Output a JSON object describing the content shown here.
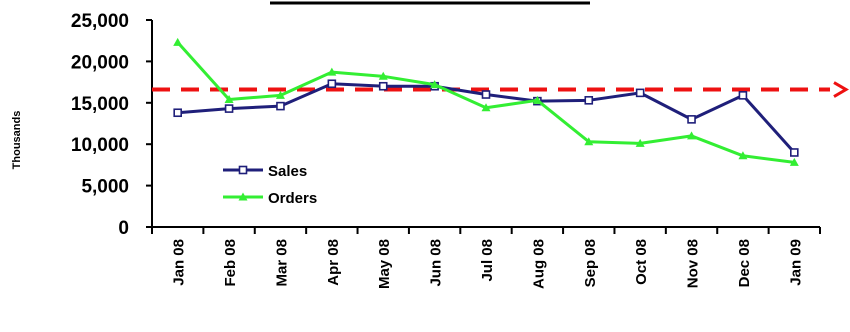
{
  "chart_data": {
    "type": "line",
    "title": "",
    "ylabel": "Thousands",
    "xlabel": "",
    "ylim": [
      0,
      25000
    ],
    "yticks": [
      0,
      5000,
      10000,
      15000,
      20000,
      25000
    ],
    "ytick_labels": [
      "0",
      "5,000",
      "10,000",
      "15,000",
      "20,000",
      "25,000"
    ],
    "categories": [
      "Jan 08",
      "Feb 08",
      "Mar 08",
      "Apr 08",
      "May 08",
      "Jun 08",
      "Jul 08",
      "Aug 08",
      "Sep 08",
      "Oct 08",
      "Nov 08",
      "Dec 08",
      "Jan 09"
    ],
    "series": [
      {
        "name": "Sales",
        "color": "#1f1f7a",
        "marker": "square",
        "values": [
          13800,
          14300,
          14600,
          17300,
          17000,
          17000,
          16000,
          15200,
          15300,
          16200,
          13000,
          15900,
          9000
        ]
      },
      {
        "name": "Orders",
        "color": "#33ee33",
        "marker": "triangle",
        "values": [
          22300,
          15400,
          15900,
          18700,
          18200,
          17200,
          14400,
          15300,
          10300,
          10100,
          11000,
          8600,
          7800
        ]
      }
    ],
    "reference_line": {
      "value": 16600,
      "color": "#ee1111",
      "style": "dashed",
      "arrow": "right"
    },
    "legend": {
      "placement": "lower-left-inside"
    },
    "grid": false
  }
}
